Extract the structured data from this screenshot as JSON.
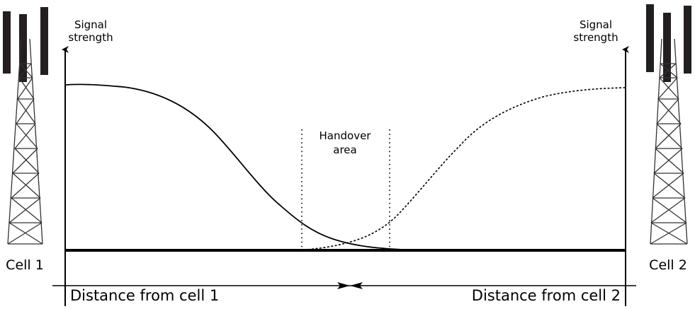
{
  "diagram": {
    "left_axis_label_line1": "Signal",
    "left_axis_label_line2": "strength",
    "right_axis_label_line1": "Signal",
    "right_axis_label_line2": "strength",
    "handover_label_line1": "Handover",
    "handover_label_line2": "area",
    "cell1_label": "Cell 1",
    "cell2_label": "Cell 2",
    "distance_left_label": "Distance from cell 1",
    "distance_right_label": "Distance from cell 2",
    "colors": {
      "ink": "#000000",
      "tower": "#231f20",
      "background": "#ffffff"
    },
    "icons": [
      "cell-tower-icon",
      "cell-tower-icon"
    ]
  }
}
